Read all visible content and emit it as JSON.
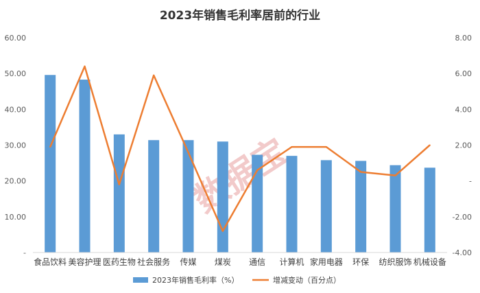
{
  "chart_data": {
    "type": "bar+line",
    "title": "2023年销售毛利率居前的行业",
    "categories": [
      "食品饮料",
      "美容护理",
      "医药生物",
      "社会服务",
      "传媒",
      "煤炭",
      "通信",
      "计算机",
      "家用电器",
      "环保",
      "纺织服饰",
      "机械设备"
    ],
    "series": [
      {
        "name": "2023年销售毛利率（%）",
        "type": "bar",
        "axis": "left",
        "color": "#5b9bd5",
        "values": [
          49.6,
          48.3,
          33.0,
          31.4,
          31.4,
          31.0,
          27.3,
          27.0,
          25.8,
          25.6,
          24.4,
          23.7
        ]
      },
      {
        "name": "增减变动（百分点）",
        "type": "line",
        "axis": "right",
        "color": "#ed7d31",
        "values": [
          1.9,
          6.4,
          -0.2,
          5.9,
          1.6,
          -2.8,
          0.6,
          1.9,
          1.9,
          0.5,
          0.3,
          2.0
        ]
      }
    ],
    "y_left": {
      "min": 0,
      "max": 60,
      "step": 10,
      "tick_labels": [
        "-",
        "10.00",
        "20.00",
        "30.00",
        "40.00",
        "50.00",
        "60.00"
      ]
    },
    "y_right": {
      "min": -4,
      "max": 8,
      "step": 2,
      "tick_labels": [
        "-4.00",
        "-2.00",
        "-",
        "2.00",
        "4.00",
        "6.00",
        "8.00"
      ]
    },
    "grid": false,
    "legend_position": "bottom",
    "watermark": "数据宝"
  }
}
